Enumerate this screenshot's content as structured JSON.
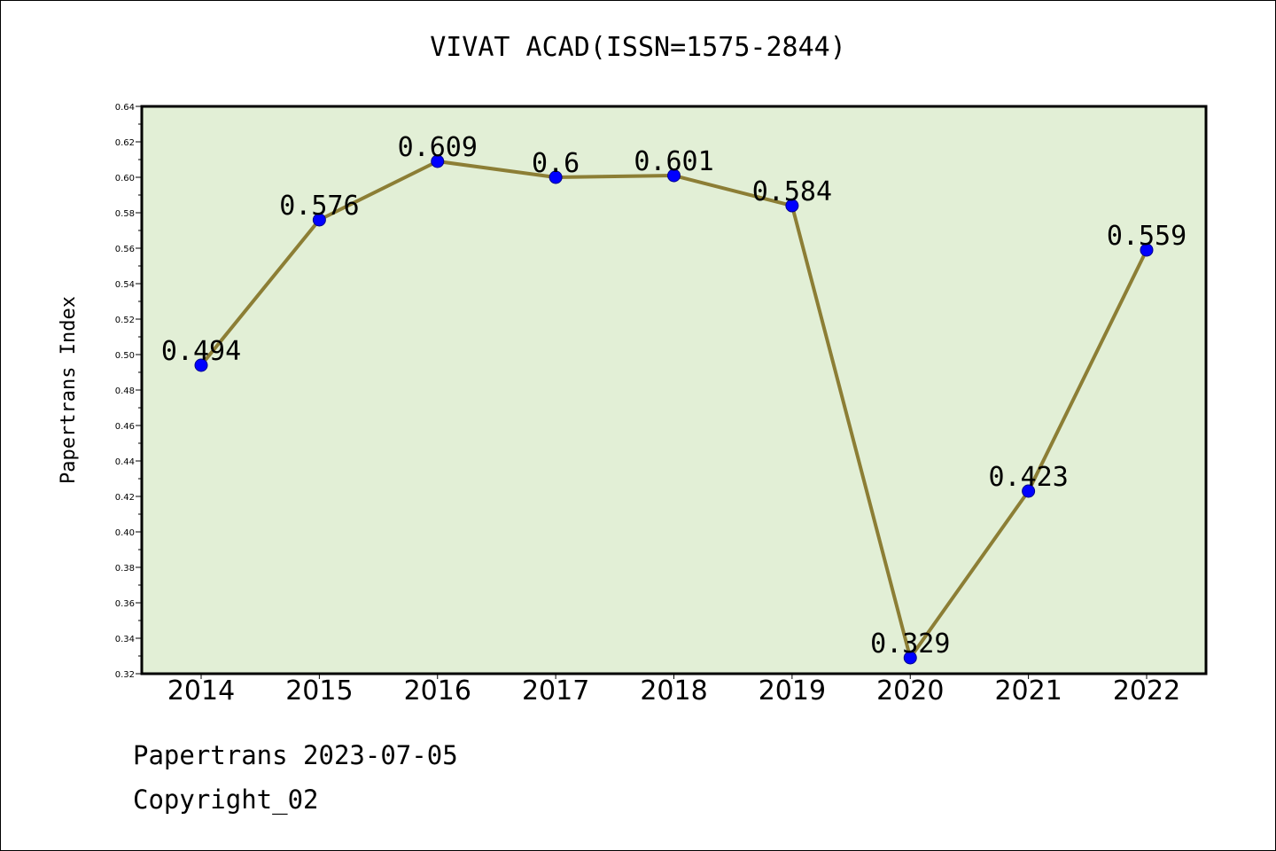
{
  "chart_data": {
    "type": "line",
    "title": "VIVAT ACAD(ISSN=1575-2844)",
    "xlabel": "",
    "ylabel": "Papertrans Index",
    "categories": [
      "2014",
      "2015",
      "2016",
      "2017",
      "2018",
      "2019",
      "2020",
      "2021",
      "2022"
    ],
    "series": [
      {
        "values": [
          0.494,
          0.576,
          0.609,
          0.6,
          0.601,
          0.584,
          0.329,
          0.423,
          0.559
        ],
        "labels": [
          "0.494",
          "0.576",
          "0.609",
          "0.6",
          "0.601",
          "0.584",
          "0.329",
          "0.423",
          "0.559"
        ]
      }
    ],
    "ylim": [
      0.32,
      0.64
    ],
    "yticks": [
      "0.32",
      "0.34",
      "0.36",
      "0.38",
      "0.40",
      "0.42",
      "0.44",
      "0.46",
      "0.48",
      "0.50",
      "0.52",
      "0.54",
      "0.56",
      "0.58",
      "0.60",
      "0.62",
      "0.64"
    ],
    "grid": false,
    "colors": {
      "plot_background": "#e2efd6",
      "line": "#8c7e35",
      "marker": "#0000ff",
      "marker_edge": "#00008b"
    }
  },
  "footer": {
    "date_line": "Papertrans 2023-07-05",
    "copyright_line": "Copyright_02"
  }
}
